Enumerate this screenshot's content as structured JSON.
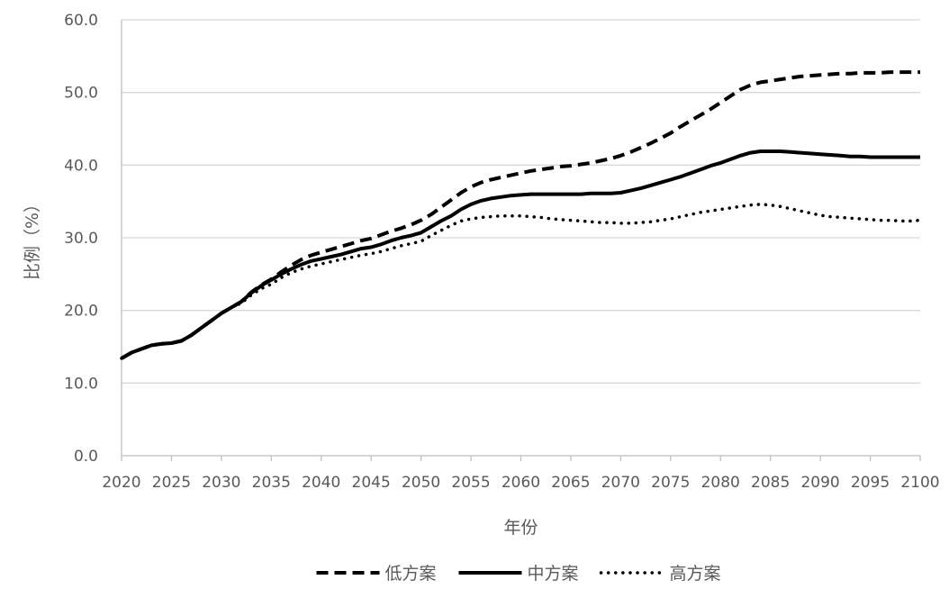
{
  "chart_data": {
    "type": "line",
    "title": "",
    "xlabel": "年份",
    "ylabel": "比例（%）",
    "xlim": [
      2020,
      2100
    ],
    "ylim": [
      0,
      60
    ],
    "x_ticks": [
      "2020",
      "2025",
      "2030",
      "2035",
      "2040",
      "2045",
      "2050",
      "2055",
      "2060",
      "2065",
      "2070",
      "2075",
      "2080",
      "2085",
      "2090",
      "2095",
      "2100"
    ],
    "y_ticks": [
      "0.0",
      "10.0",
      "20.0",
      "30.0",
      "40.0",
      "50.0",
      "60.0"
    ],
    "grid": "horizontal",
    "legend_position": "bottom",
    "series": [
      {
        "name": "低方案",
        "line_style": "dashed",
        "color": "#000000",
        "x": [
          2020,
          2021,
          2022,
          2023,
          2024,
          2025,
          2026,
          2027,
          2028,
          2029,
          2030,
          2031,
          2032,
          2033,
          2034,
          2035,
          2036,
          2037,
          2038,
          2039,
          2040,
          2041,
          2042,
          2043,
          2044,
          2045,
          2046,
          2047,
          2048,
          2049,
          2050,
          2051,
          2052,
          2053,
          2054,
          2055,
          2056,
          2057,
          2058,
          2059,
          2060,
          2061,
          2062,
          2063,
          2064,
          2065,
          2066,
          2067,
          2068,
          2069,
          2070,
          2071,
          2072,
          2073,
          2074,
          2075,
          2076,
          2077,
          2078,
          2079,
          2080,
          2081,
          2082,
          2083,
          2084,
          2085,
          2086,
          2087,
          2088,
          2089,
          2090,
          2091,
          2092,
          2093,
          2094,
          2095,
          2096,
          2097,
          2098,
          2099,
          2100
        ],
        "y": [
          13.4,
          14.2,
          14.7,
          15.2,
          15.4,
          15.5,
          15.8,
          16.6,
          17.6,
          18.6,
          19.6,
          20.4,
          21.2,
          22.5,
          23.5,
          24.3,
          25.3,
          26.2,
          27.0,
          27.6,
          28.0,
          28.4,
          28.8,
          29.2,
          29.6,
          29.9,
          30.4,
          30.9,
          31.3,
          31.8,
          32.4,
          33.2,
          34.2,
          35.2,
          36.2,
          37.0,
          37.6,
          38.0,
          38.3,
          38.6,
          38.9,
          39.2,
          39.4,
          39.6,
          39.8,
          39.9,
          40.1,
          40.3,
          40.6,
          40.9,
          41.3,
          41.8,
          42.4,
          43.0,
          43.7,
          44.4,
          45.3,
          46.1,
          46.9,
          47.7,
          48.6,
          49.5,
          50.4,
          51.0,
          51.4,
          51.6,
          51.8,
          52.0,
          52.2,
          52.3,
          52.4,
          52.5,
          52.6,
          52.6,
          52.7,
          52.7,
          52.7,
          52.8,
          52.8,
          52.8,
          52.8
        ]
      },
      {
        "name": "中方案",
        "line_style": "solid",
        "color": "#000000",
        "x": [
          2020,
          2021,
          2022,
          2023,
          2024,
          2025,
          2026,
          2027,
          2028,
          2029,
          2030,
          2031,
          2032,
          2033,
          2034,
          2035,
          2036,
          2037,
          2038,
          2039,
          2040,
          2041,
          2042,
          2043,
          2044,
          2045,
          2046,
          2047,
          2048,
          2049,
          2050,
          2051,
          2052,
          2053,
          2054,
          2055,
          2056,
          2057,
          2058,
          2059,
          2060,
          2061,
          2062,
          2063,
          2064,
          2065,
          2066,
          2067,
          2068,
          2069,
          2070,
          2071,
          2072,
          2073,
          2074,
          2075,
          2076,
          2077,
          2078,
          2079,
          2080,
          2081,
          2082,
          2083,
          2084,
          2085,
          2086,
          2087,
          2088,
          2089,
          2090,
          2091,
          2092,
          2093,
          2094,
          2095,
          2096,
          2097,
          2098,
          2099,
          2100
        ],
        "y": [
          13.4,
          14.2,
          14.7,
          15.2,
          15.4,
          15.5,
          15.8,
          16.6,
          17.6,
          18.6,
          19.6,
          20.4,
          21.2,
          22.4,
          23.4,
          24.2,
          25.0,
          25.7,
          26.3,
          26.8,
          27.1,
          27.4,
          27.7,
          28.1,
          28.5,
          28.7,
          29.1,
          29.6,
          30.0,
          30.3,
          30.7,
          31.5,
          32.3,
          33.0,
          33.9,
          34.6,
          35.1,
          35.4,
          35.6,
          35.8,
          35.9,
          36.0,
          36.0,
          36.0,
          36.0,
          36.0,
          36.0,
          36.1,
          36.1,
          36.1,
          36.2,
          36.5,
          36.8,
          37.2,
          37.6,
          38.0,
          38.4,
          38.9,
          39.4,
          39.9,
          40.3,
          40.8,
          41.3,
          41.7,
          41.9,
          41.9,
          41.9,
          41.8,
          41.7,
          41.6,
          41.5,
          41.4,
          41.3,
          41.2,
          41.2,
          41.1,
          41.1,
          41.1,
          41.1,
          41.1,
          41.1
        ]
      },
      {
        "name": "高方案",
        "line_style": "dotted",
        "color": "#000000",
        "x": [
          2020,
          2021,
          2022,
          2023,
          2024,
          2025,
          2026,
          2027,
          2028,
          2029,
          2030,
          2031,
          2032,
          2033,
          2034,
          2035,
          2036,
          2037,
          2038,
          2039,
          2040,
          2041,
          2042,
          2043,
          2044,
          2045,
          2046,
          2047,
          2048,
          2049,
          2050,
          2051,
          2052,
          2053,
          2054,
          2055,
          2056,
          2057,
          2058,
          2059,
          2060,
          2061,
          2062,
          2063,
          2064,
          2065,
          2066,
          2067,
          2068,
          2069,
          2070,
          2071,
          2072,
          2073,
          2074,
          2075,
          2076,
          2077,
          2078,
          2079,
          2080,
          2081,
          2082,
          2083,
          2084,
          2085,
          2086,
          2087,
          2088,
          2089,
          2090,
          2091,
          2092,
          2093,
          2094,
          2095,
          2096,
          2097,
          2098,
          2099,
          2100
        ],
        "y": [
          13.4,
          14.2,
          14.7,
          15.2,
          15.4,
          15.5,
          15.8,
          16.6,
          17.6,
          18.6,
          19.6,
          20.4,
          21.0,
          22.1,
          23.0,
          23.6,
          24.5,
          25.2,
          25.7,
          26.1,
          26.4,
          26.7,
          27.0,
          27.3,
          27.6,
          27.8,
          28.1,
          28.5,
          28.9,
          29.2,
          29.5,
          30.3,
          31.0,
          31.7,
          32.3,
          32.6,
          32.8,
          32.9,
          33.0,
          33.0,
          33.0,
          32.9,
          32.8,
          32.6,
          32.5,
          32.4,
          32.3,
          32.2,
          32.1,
          32.1,
          32.0,
          32.0,
          32.1,
          32.2,
          32.4,
          32.6,
          32.9,
          33.2,
          33.5,
          33.7,
          33.9,
          34.1,
          34.3,
          34.5,
          34.6,
          34.5,
          34.3,
          34.0,
          33.7,
          33.4,
          33.1,
          32.9,
          32.8,
          32.7,
          32.6,
          32.5,
          32.4,
          32.4,
          32.3,
          32.3,
          32.4
        ]
      }
    ]
  }
}
